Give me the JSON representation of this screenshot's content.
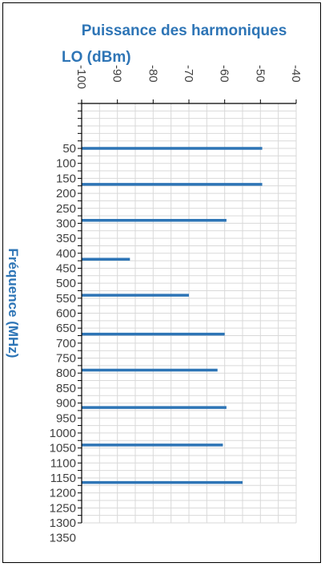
{
  "chart_data": {
    "type": "bar",
    "orientation": "horizontal",
    "title_lines": [
      "Puissance des harmoniques",
      "LO (dBm)"
    ],
    "ylabel": "Fréquence (MHz)",
    "x_ticks": [
      -100,
      -90,
      -80,
      -70,
      -60,
      -50,
      -40
    ],
    "x_range": [
      -100,
      -40
    ],
    "y_ticks": [
      50,
      100,
      150,
      200,
      250,
      300,
      350,
      400,
      450,
      500,
      550,
      600,
      650,
      700,
      750,
      800,
      850,
      900,
      950,
      1000,
      1050,
      1100,
      1150,
      1200,
      1250,
      1300,
      1350
    ],
    "y_range": [
      -100,
      1300
    ],
    "grid": true,
    "color": "#2e75b6",
    "categories": [
      50,
      170,
      290,
      420,
      540,
      670,
      790,
      915,
      1040,
      1165
    ],
    "values": [
      -49.5,
      -49.5,
      -59.5,
      -86.5,
      -70,
      -60,
      -62,
      -59.5,
      -60.5,
      -55
    ]
  }
}
